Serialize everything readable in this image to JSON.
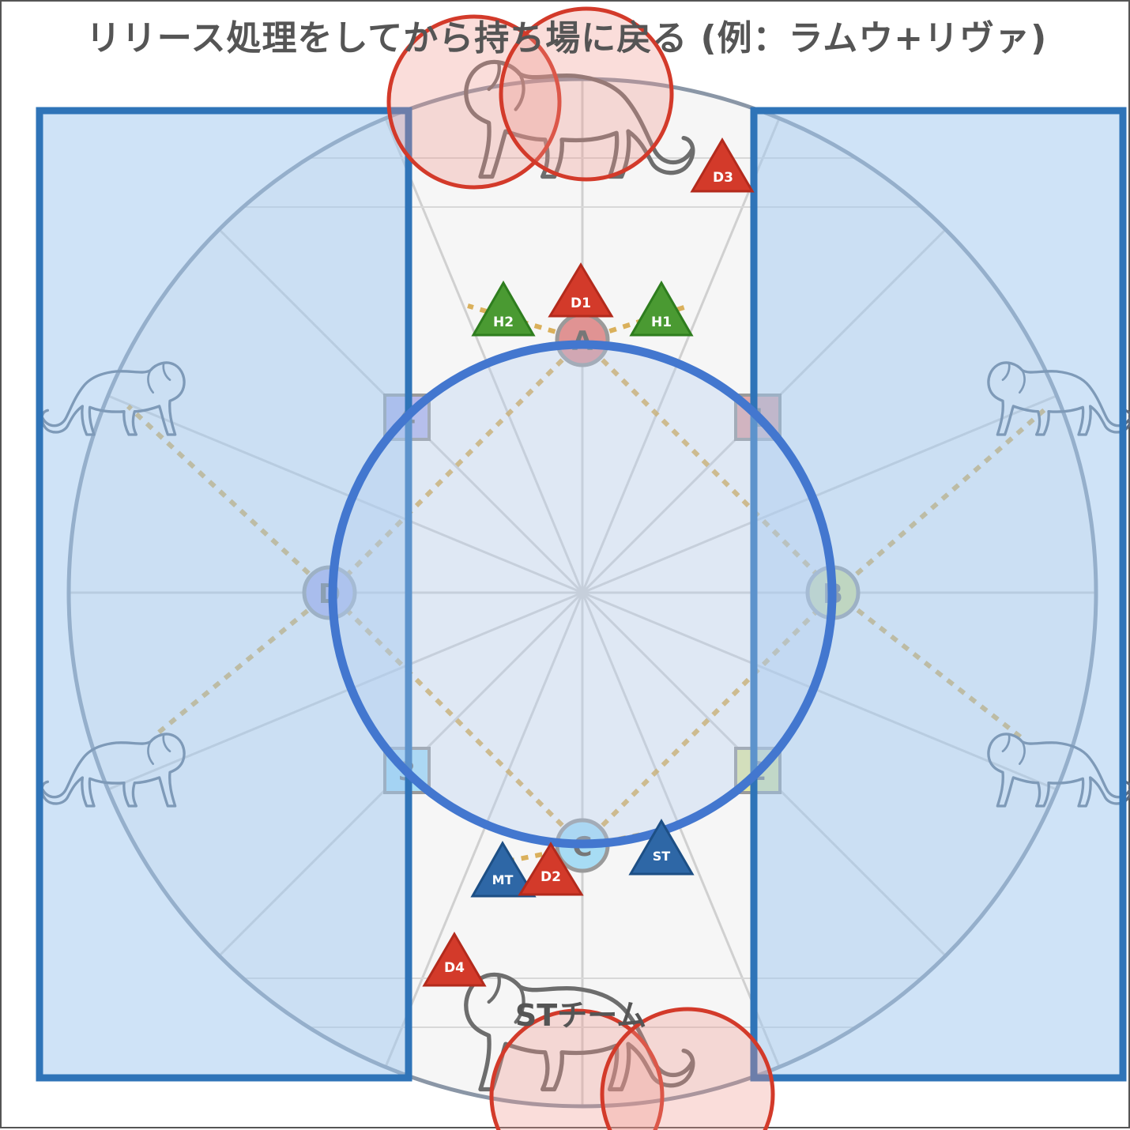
{
  "title": "リリース処理をしてから持ち場に戻る (例：ラムウ+リヴァ)",
  "waymarks": {
    "A": "A",
    "B": "B",
    "C": "C",
    "D": "D",
    "1": "1",
    "2": "2",
    "3": "3",
    "4": "4"
  },
  "players": {
    "D1": "D1",
    "D2": "D2",
    "D3": "D3",
    "D4": "D4",
    "H1": "H1",
    "H2": "H2",
    "MT": "MT",
    "ST": "ST"
  },
  "team_label": "STチーム",
  "colors": {
    "dps": "#d33a2a",
    "healer": "#4a9a32",
    "tank": "#2e67a6",
    "aoe_fill": "#f6c5c0",
    "aoe_stroke": "#d33a2a",
    "safe_blue": "#2f74b8",
    "circle_blue": "#4377cf",
    "tether": "#d6a440"
  },
  "icons": [
    "lion-icon",
    "aoe-circle-icon",
    "waymark-icon",
    "triangle-player-icon"
  ]
}
